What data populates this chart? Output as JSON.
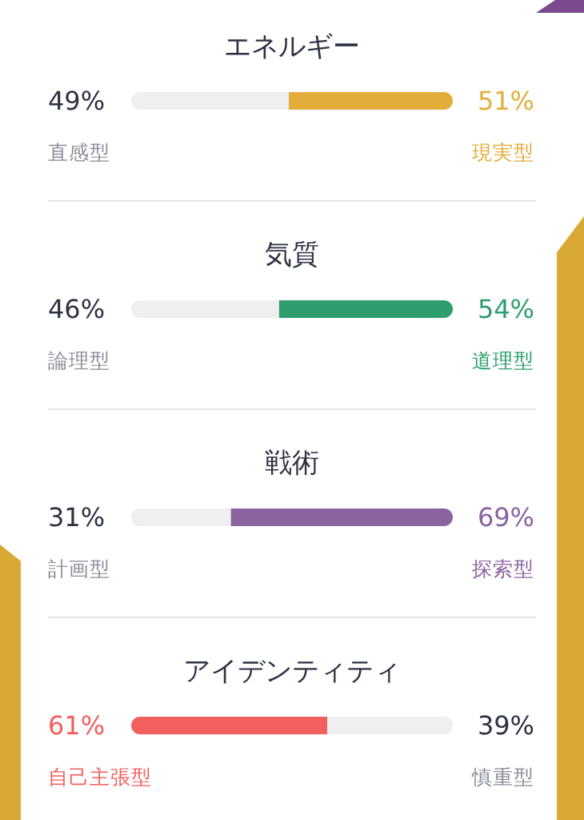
{
  "chart_data": [
    {
      "type": "bar",
      "orientation": "horizontal",
      "stacked": true,
      "title": "エネルギー",
      "categories": [
        null
      ],
      "tick_labels": false,
      "grid": false,
      "legend": false,
      "series": [
        {
          "name": "直感型",
          "color": "#efefef",
          "values": [
            49
          ],
          "value_labels": [
            "49%"
          ]
        },
        {
          "name": "現実型",
          "color": "#e3ad3b",
          "values": [
            51
          ],
          "value_labels": [
            "51%"
          ]
        }
      ]
    },
    {
      "type": "bar",
      "orientation": "horizontal",
      "stacked": true,
      "title": "気質",
      "categories": [
        null
      ],
      "tick_labels": false,
      "grid": false,
      "legend": false,
      "series": [
        {
          "name": "論理型",
          "color": "#efefef",
          "values": [
            46
          ],
          "value_labels": [
            "46%"
          ]
        },
        {
          "name": "道理型",
          "color": "#2e9e6e",
          "values": [
            54
          ],
          "value_labels": [
            "54%"
          ]
        }
      ]
    },
    {
      "type": "bar",
      "orientation": "horizontal",
      "stacked": true,
      "title": "戦術",
      "categories": [
        null
      ],
      "tick_labels": false,
      "grid": false,
      "legend": false,
      "series": [
        {
          "name": "計画型",
          "color": "#efefef",
          "values": [
            31
          ],
          "value_labels": [
            "31%"
          ]
        },
        {
          "name": "探索型",
          "color": "#8a63a0",
          "values": [
            69
          ],
          "value_labels": [
            "69%"
          ]
        }
      ]
    },
    {
      "type": "bar",
      "orientation": "horizontal",
      "stacked": true,
      "title": "アイデンティティ",
      "categories": [
        null
      ],
      "tick_labels": false,
      "grid": false,
      "legend": false,
      "series": [
        {
          "name": "自己主張型",
          "color": "#f25f5c",
          "values": [
            61
          ],
          "value_labels": [
            "61%"
          ]
        },
        {
          "name": "慎重型",
          "color": "#efefef",
          "values": [
            39
          ],
          "value_labels": [
            "39%"
          ]
        }
      ]
    }
  ]
}
